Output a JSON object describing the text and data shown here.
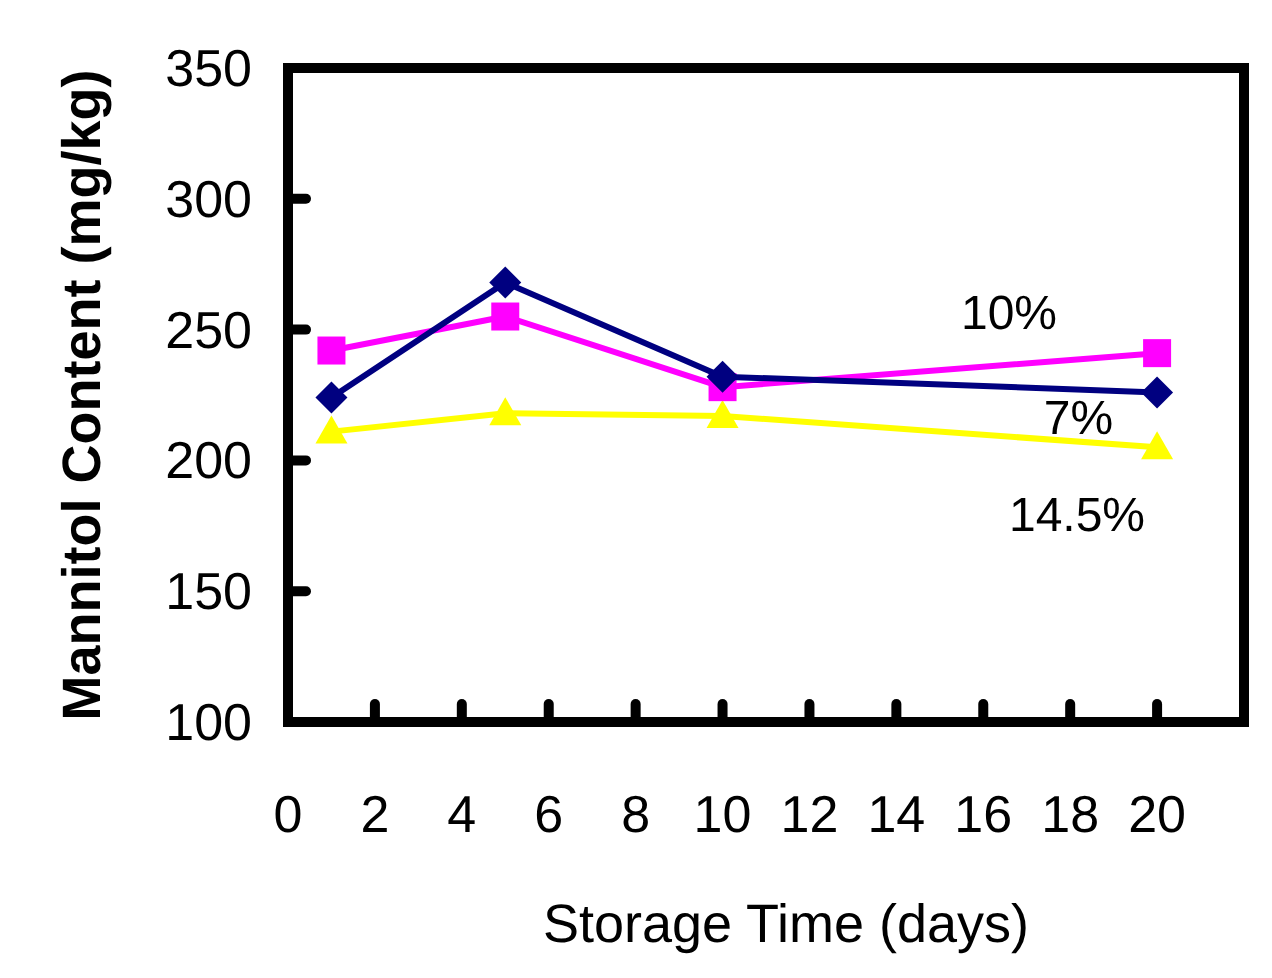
{
  "chart_data": {
    "type": "line",
    "xlabel": "Storage Time (days)",
    "ylabel": "Mannitol Content (mg/kg)",
    "x": [
      1,
      5,
      10,
      20
    ],
    "xlim": [
      0,
      22
    ],
    "xticks": [
      0,
      2,
      4,
      6,
      8,
      10,
      12,
      14,
      16,
      18,
      20
    ],
    "ylim": [
      100,
      350
    ],
    "yticks": [
      100,
      150,
      200,
      250,
      300,
      350
    ],
    "grid": false,
    "legend": false,
    "line_style": "solid",
    "series": [
      {
        "name": "7%",
        "color": "#000080",
        "marker": "diamond",
        "values": [
          224,
          268,
          232,
          226
        ]
      },
      {
        "name": "10%",
        "color": "#ff00ff",
        "marker": "square",
        "values": [
          242,
          255,
          228,
          241
        ]
      },
      {
        "name": "14.5%",
        "color": "#ffff00",
        "marker": "triangle",
        "values": [
          211,
          218,
          217,
          205
        ]
      }
    ]
  }
}
